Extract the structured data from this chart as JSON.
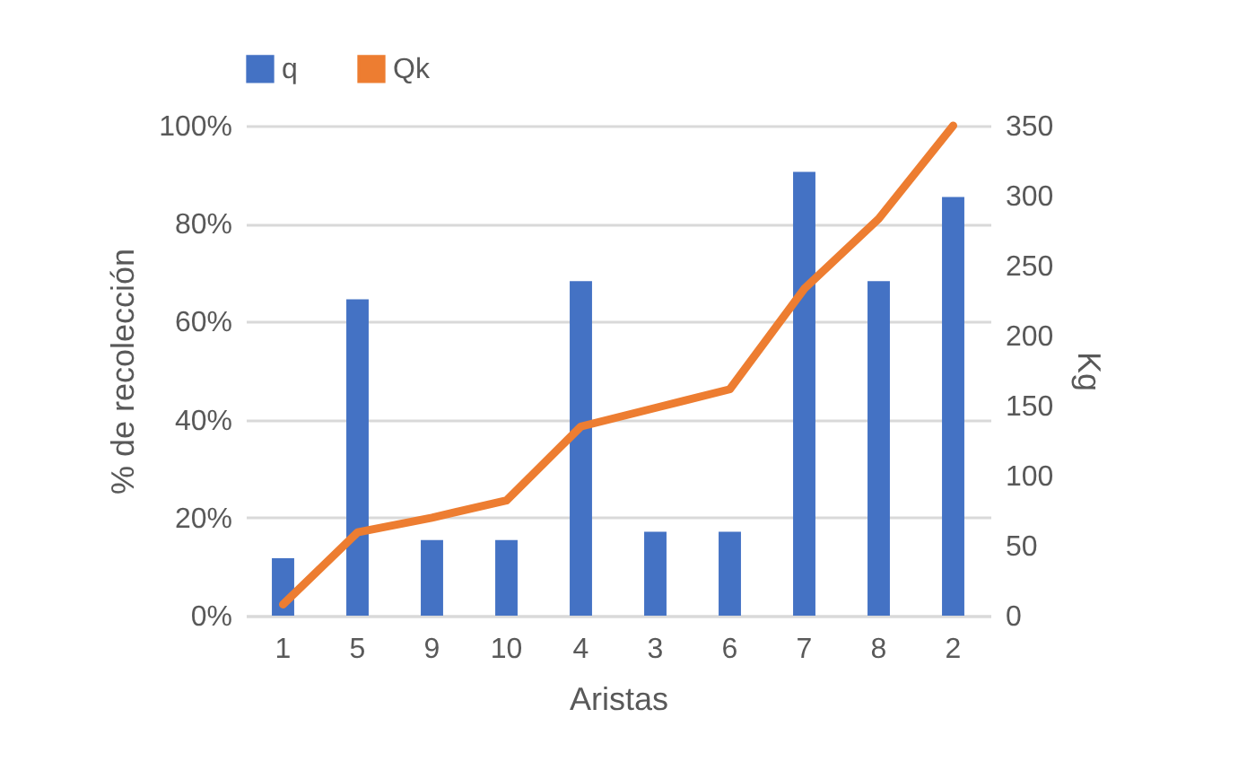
{
  "chart_data": {
    "type": "bar",
    "xlabel": "Aristas",
    "ylabel": "% de recolección",
    "y2label": "Kg",
    "categories": [
      "1",
      "5",
      "9",
      "10",
      "4",
      "3",
      "6",
      "7",
      "8",
      "2"
    ],
    "series": [
      {
        "name": "q",
        "axis": "y2",
        "color": "#4472c4",
        "values": [
          41,
          226,
          54,
          54,
          239,
          60,
          60,
          317,
          239,
          299
        ]
      },
      {
        "name": "Qk",
        "type": "line",
        "axis": "y",
        "color": "#ed7d31",
        "values": [
          2.3,
          17,
          20,
          23.5,
          38.6,
          42.4,
          46.2,
          66.7,
          81,
          100
        ]
      }
    ],
    "ylim": [
      0,
      100
    ],
    "yticks": [
      {
        "value": 0,
        "label": "0%"
      },
      {
        "value": 20,
        "label": "20%"
      },
      {
        "value": 40,
        "label": "40%"
      },
      {
        "value": 60,
        "label": "60%"
      },
      {
        "value": 80,
        "label": "80%"
      },
      {
        "value": 100,
        "label": "100%"
      }
    ],
    "y2lim": [
      0,
      350
    ],
    "y2ticks": [
      0,
      50,
      100,
      150,
      200,
      250,
      300,
      350
    ],
    "grid": "y",
    "legend": "top"
  }
}
